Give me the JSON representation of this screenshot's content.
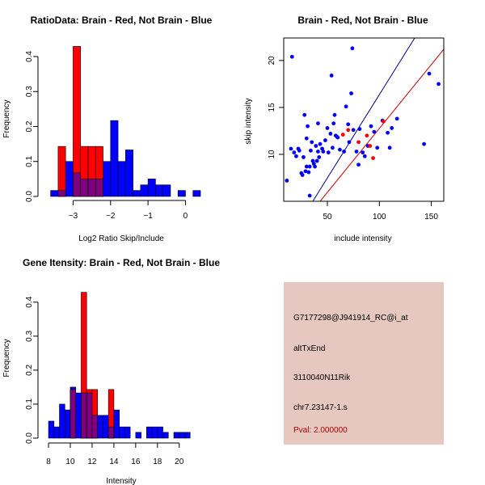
{
  "colors": {
    "red": "#ff0000",
    "blue": "#0000ff",
    "overlap": "#7f007f",
    "panel_bg": "#e6c8c0",
    "pval": "#b00000",
    "line_blue": "#000080",
    "line_red": "#cc0000"
  },
  "chart_data": [
    {
      "type": "bar",
      "title": "RatioData: Brain - Red, Not Brain - Blue",
      "xlabel": "Log2 Ratio Skip/Include",
      "ylabel": "Frequency",
      "xlim": [
        -3.7,
        0.4
      ],
      "ylim": [
        0,
        0.43
      ],
      "xticks": [
        -3,
        -2,
        -1,
        0
      ],
      "yticks": [
        0.0,
        0.1,
        0.2,
        0.3,
        0.4
      ],
      "bin_width": 0.2,
      "series": [
        {
          "name": "Not Brain",
          "color": "blue",
          "bins": [
            [
              -3.6,
              0.017
            ],
            [
              -3.4,
              0.017
            ],
            [
              -3.2,
              0.1
            ],
            [
              -3.0,
              0.067
            ],
            [
              -2.8,
              0.05
            ],
            [
              -2.6,
              0.05
            ],
            [
              -2.4,
              0.05
            ],
            [
              -2.2,
              0.1
            ],
            [
              -2.0,
              0.217
            ],
            [
              -1.8,
              0.1
            ],
            [
              -1.6,
              0.133
            ],
            [
              -1.4,
              0.017
            ],
            [
              -1.2,
              0.033
            ],
            [
              -1.0,
              0.05
            ],
            [
              -0.8,
              0.033
            ],
            [
              -0.6,
              0.033
            ],
            [
              -0.2,
              0.017
            ],
            [
              0.2,
              0.017
            ]
          ]
        },
        {
          "name": "Brain",
          "color": "red",
          "bins": [
            [
              -3.4,
              0.143
            ],
            [
              -3.0,
              0.429
            ],
            [
              -2.8,
              0.143
            ],
            [
              -2.6,
              0.143
            ],
            [
              -2.4,
              0.143
            ]
          ]
        }
      ]
    },
    {
      "type": "scatter",
      "title": "Brain - Red, Not Brain - Blue",
      "xlabel": "include intensity",
      "ylabel": "skip intensity",
      "xlim": [
        8,
        162
      ],
      "ylim": [
        5,
        22.4
      ],
      "xticks": [
        50,
        100,
        150
      ],
      "yticks": [
        10,
        15,
        20
      ],
      "lines": [
        {
          "name": "blue line",
          "color": "line_blue",
          "points": [
            [
              36,
              5
            ],
            [
              134,
              22.4
            ]
          ]
        },
        {
          "name": "red line",
          "color": "line_red",
          "points": [
            [
              43,
              5
            ],
            [
              162,
              21.2
            ]
          ]
        }
      ],
      "series": [
        {
          "name": "Not Brain",
          "color": "blue",
          "points": [
            [
              11,
              7.2
            ],
            [
              15,
              10.6
            ],
            [
              16,
              20.4
            ],
            [
              18,
              10.2
            ],
            [
              20,
              9.8
            ],
            [
              22,
              10.6
            ],
            [
              23,
              10.4
            ],
            [
              25,
              8
            ],
            [
              26,
              7.8
            ],
            [
              27,
              9.7
            ],
            [
              28,
              14.2
            ],
            [
              29,
              8.2
            ],
            [
              30,
              8.7
            ],
            [
              30,
              11.7
            ],
            [
              31,
              13
            ],
            [
              32,
              8.1
            ],
            [
              33,
              8.7
            ],
            [
              33,
              5.6
            ],
            [
              34,
              10.4
            ],
            [
              35,
              11.3
            ],
            [
              36,
              9.3
            ],
            [
              37,
              9
            ],
            [
              38,
              8.7
            ],
            [
              39,
              10.9
            ],
            [
              40,
              9.3
            ],
            [
              41,
              13.3
            ],
            [
              41,
              10.3
            ],
            [
              42,
              9.7
            ],
            [
              43,
              11.1
            ],
            [
              45,
              10.6
            ],
            [
              46,
              10.3
            ],
            [
              48,
              11.5
            ],
            [
              50,
              12.8
            ],
            [
              51,
              10.2
            ],
            [
              53,
              12.2
            ],
            [
              54,
              18.4
            ],
            [
              55,
              10.7
            ],
            [
              56,
              13.3
            ],
            [
              57,
              14.2
            ],
            [
              58,
              12
            ],
            [
              59,
              11.9
            ],
            [
              60,
              11.8
            ],
            [
              62,
              10.5
            ],
            [
              66,
              10.3
            ],
            [
              68,
              15.1
            ],
            [
              70,
              13.2
            ],
            [
              71,
              11.3
            ],
            [
              73,
              16.5
            ],
            [
              74,
              21.3
            ],
            [
              75,
              12.6
            ],
            [
              78,
              10.3
            ],
            [
              80,
              8.9
            ],
            [
              81,
              12.7
            ],
            [
              84,
              10.2
            ],
            [
              86,
              9.8
            ],
            [
              89,
              10.9
            ],
            [
              92,
              13
            ],
            [
              95,
              12.4
            ],
            [
              98,
              10.7
            ],
            [
              103,
              13.6
            ],
            [
              108,
              12.3
            ],
            [
              110,
              10.7
            ],
            [
              112,
              12.8
            ],
            [
              117,
              13.8
            ],
            [
              143,
              11.1
            ],
            [
              148,
              18.6
            ],
            [
              157,
              17.5
            ]
          ]
        },
        {
          "name": "Brain",
          "color": "red",
          "points": [
            [
              65,
              12.1
            ],
            [
              70,
              12.6
            ],
            [
              80,
              11.3
            ],
            [
              88,
              12
            ],
            [
              91,
              10.9
            ],
            [
              94,
              9.6
            ],
            [
              104,
              13.5
            ]
          ]
        }
      ]
    },
    {
      "type": "bar",
      "title": "Gene Itensity: Brain - Red, Not Brain - Blue",
      "xlabel": "Intensity",
      "ylabel": "Frequency",
      "xlim": [
        7.7,
        21.8
      ],
      "ylim": [
        0,
        0.44
      ],
      "xticks": [
        8,
        10,
        12,
        14,
        16,
        18,
        20
      ],
      "yticks": [
        0.0,
        0.1,
        0.2,
        0.3,
        0.4
      ],
      "bin_width": 0.5,
      "series": [
        {
          "name": "Not Brain",
          "color": "blue",
          "bins": [
            [
              8.0,
              0.05
            ],
            [
              8.5,
              0.033
            ],
            [
              9.0,
              0.1
            ],
            [
              9.5,
              0.083
            ],
            [
              10.0,
              0.15
            ],
            [
              10.5,
              0.133
            ],
            [
              11.0,
              0.133
            ],
            [
              11.5,
              0.133
            ],
            [
              12.0,
              0.067
            ],
            [
              12.5,
              0.067
            ],
            [
              13.0,
              0.067
            ],
            [
              13.5,
              0.033
            ],
            [
              14.0,
              0.083
            ],
            [
              14.5,
              0.033
            ],
            [
              15.0,
              0.033
            ],
            [
              16.0,
              0.017
            ],
            [
              17.0,
              0.033
            ],
            [
              17.5,
              0.033
            ],
            [
              18.0,
              0.033
            ],
            [
              18.5,
              0.017
            ],
            [
              19.5,
              0.017
            ],
            [
              20.0,
              0.017
            ],
            [
              20.5,
              0.017
            ]
          ]
        },
        {
          "name": "Brain",
          "color": "red",
          "bins": [
            [
              10.0,
              0.143
            ],
            [
              11.0,
              0.429
            ],
            [
              11.5,
              0.143
            ],
            [
              12.0,
              0.143
            ],
            [
              13.5,
              0.143
            ]
          ]
        }
      ]
    }
  ],
  "info_panel": {
    "probe_id": "G7177298@J941914_RC@i_at",
    "event_type": "altTxEnd",
    "gene": "3110040N11Rik",
    "location": "chr7.23147-1.s",
    "pval": "Pval: 2.000000"
  }
}
